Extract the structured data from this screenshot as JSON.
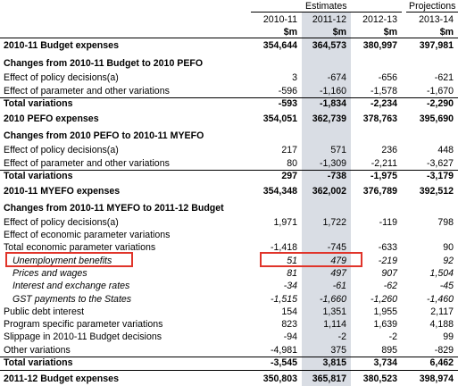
{
  "header": {
    "group_estimates": "Estimates",
    "group_projections": "Projections",
    "years": [
      "2010-11",
      "2011-12",
      "2012-13",
      "2013-14"
    ],
    "units": [
      "$m",
      "$m",
      "$m",
      "$m"
    ]
  },
  "rows": [
    {
      "label": "2010-11 Budget expenses",
      "values": [
        "354,644",
        "364,573",
        "380,997",
        "397,981"
      ]
    },
    {
      "label": "Changes from 2010-11 Budget to 2010 PEFO"
    },
    {
      "label": "Effect of policy decisions(a)",
      "values": [
        "3",
        "-674",
        "-656",
        "-621"
      ]
    },
    {
      "label": "Effect of parameter and other variations",
      "values": [
        "-596",
        "-1,160",
        "-1,578",
        "-1,670"
      ]
    },
    {
      "label": "Total variations",
      "values": [
        "-593",
        "-1,834",
        "-2,234",
        "-2,290"
      ]
    },
    {
      "label": "2010 PEFO expenses",
      "values": [
        "354,051",
        "362,739",
        "378,763",
        "395,690"
      ]
    },
    {
      "label": "Changes from 2010 PEFO to 2010-11 MYEFO"
    },
    {
      "label": "Effect of policy decisions(a)",
      "values": [
        "217",
        "571",
        "236",
        "448"
      ]
    },
    {
      "label": "Effect of parameter and other variations",
      "values": [
        "80",
        "-1,309",
        "-2,211",
        "-3,627"
      ]
    },
    {
      "label": "Total variations",
      "values": [
        "297",
        "-738",
        "-1,975",
        "-3,179"
      ]
    },
    {
      "label": "2010-11 MYEFO expenses",
      "values": [
        "354,348",
        "362,002",
        "376,789",
        "392,512"
      ]
    },
    {
      "label": "Changes from 2010-11 MYEFO to 2011-12 Budget"
    },
    {
      "label": "Effect of policy decisions(a)",
      "values": [
        "1,971",
        "1,722",
        "-119",
        "798"
      ]
    },
    {
      "label": "Effect of economic parameter variations"
    },
    {
      "label": "Total economic parameter variations",
      "values": [
        "-1,418",
        "-745",
        "-633",
        "90"
      ]
    },
    {
      "label": "Unemployment benefits",
      "values": [
        "51",
        "479",
        "-219",
        "92"
      ]
    },
    {
      "label": "Prices and wages",
      "values": [
        "81",
        "497",
        "907",
        "1,504"
      ]
    },
    {
      "label": "Interest and exchange rates",
      "values": [
        "-34",
        "-61",
        "-62",
        "-45"
      ]
    },
    {
      "label": "GST payments to the States",
      "values": [
        "-1,515",
        "-1,660",
        "-1,260",
        "-1,460"
      ]
    },
    {
      "label": "Public debt interest",
      "values": [
        "154",
        "1,351",
        "1,955",
        "2,117"
      ]
    },
    {
      "label": "Program specific parameter variations",
      "values": [
        "823",
        "1,114",
        "1,639",
        "4,188"
      ]
    },
    {
      "label": "Slippage in 2010-11 Budget decisions",
      "values": [
        "-94",
        "-2",
        "-2",
        "99"
      ]
    },
    {
      "label": "Other variations",
      "values": [
        "-4,981",
        "375",
        "895",
        "-829"
      ]
    },
    {
      "label": "Total variations",
      "values": [
        "-3,545",
        "3,815",
        "3,734",
        "6,462"
      ]
    },
    {
      "label": "2011-12 Budget expenses",
      "values": [
        "350,803",
        "365,817",
        "380,523",
        "398,974"
      ]
    }
  ]
}
